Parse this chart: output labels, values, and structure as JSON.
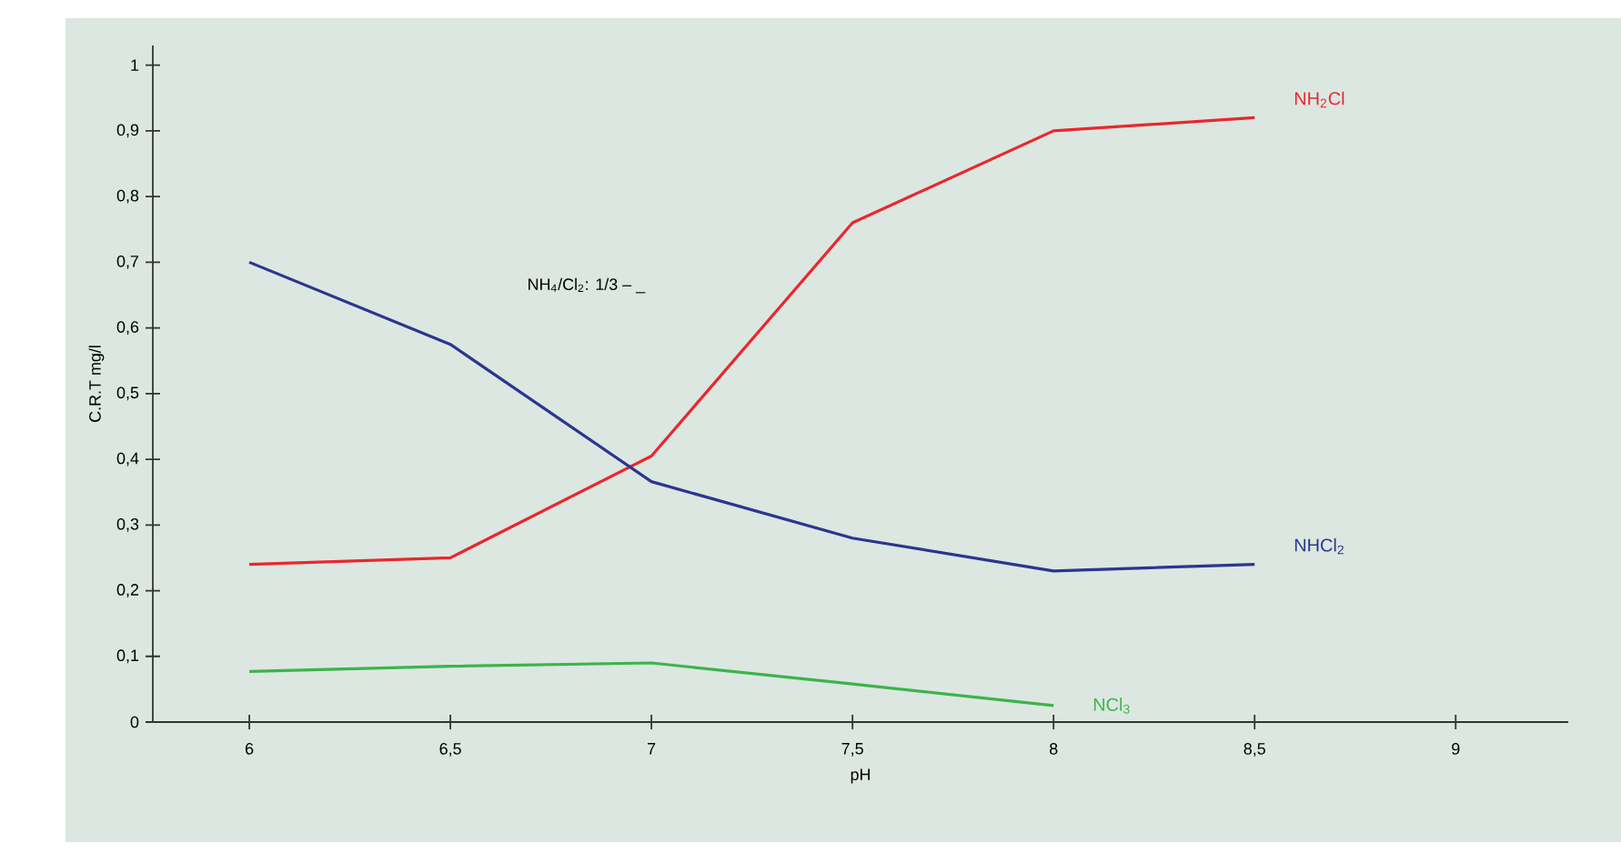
{
  "chart_data": {
    "type": "line",
    "xlabel": "pH",
    "ylabel": "C.R.T mg/l",
    "x": [
      6,
      6.5,
      7,
      7.5,
      8,
      8.5
    ],
    "series": [
      {
        "name": "NH$_{2}$Cl",
        "color": "#e8282e",
        "values": [
          0.24,
          0.25,
          0.405,
          0.76,
          0.9,
          0.92
        ]
      },
      {
        "name": "NHCl$_{2}$",
        "color": "#2b3590",
        "values": [
          0.7,
          0.575,
          0.366,
          0.28,
          0.23,
          0.24
        ]
      },
      {
        "name": "NCl$_{3}$",
        "color": "#3cb44a",
        "values": [
          0.077,
          0.085,
          0.09,
          0.058,
          0.025,
          null
        ]
      }
    ],
    "xlim": [
      5.76,
      9.28
    ],
    "ylim": [
      0,
      1.03
    ],
    "xticks": [
      6,
      {
        "value": 6.5,
        "label": "6,5"
      },
      7,
      {
        "value": 7.5,
        "label": "7,5"
      },
      8,
      {
        "value": 8.5,
        "label": "8,5"
      },
      9
    ],
    "yticks": [
      0,
      {
        "value": 0.1,
        "label": "0,1"
      },
      {
        "value": 0.2,
        "label": "0,2"
      },
      {
        "value": 0.3,
        "label": "0,3"
      },
      {
        "value": 0.4,
        "label": "0,4"
      },
      {
        "value": 0.5,
        "label": "0,5"
      },
      {
        "value": 0.6,
        "label": "0,6"
      },
      {
        "value": 0.7,
        "label": "0,7"
      },
      {
        "value": 0.8,
        "label": "0,8"
      },
      {
        "value": 0.9,
        "label": "0,9"
      },
      1
    ],
    "annotations": [
      "NH$_{4}$/Cl$_{2}$: 1/3 – _"
    ],
    "grid": false,
    "legend": false,
    "marker": "none",
    "line_style": "solid"
  }
}
